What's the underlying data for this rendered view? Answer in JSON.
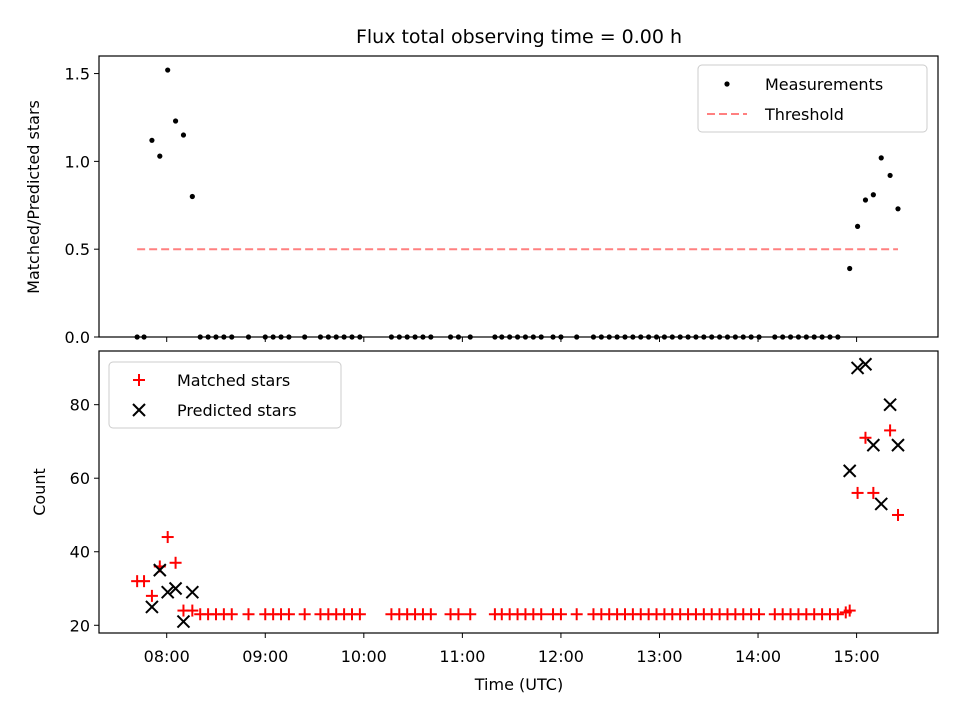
{
  "chart_data": [
    {
      "type": "scatter",
      "title": "Flux total observing time = 0.00 h",
      "xlabel": "",
      "ylabel": "Matched/Predicted stars",
      "xlim": [
        7.313,
        15.826
      ],
      "ylim": [
        0.0,
        1.6
      ],
      "yticks": [
        0.0,
        0.5,
        1.0,
        1.5
      ],
      "ytick_labels": [
        "0.0",
        "0.5",
        "1.0",
        "1.5"
      ],
      "legend_position": "top-right",
      "series": [
        {
          "name": "Measurements",
          "kind": "scatter",
          "color": "#000000",
          "points": [
            [
              7.7,
              0
            ],
            [
              7.77,
              0
            ],
            [
              7.85,
              1.12
            ],
            [
              7.93,
              1.03
            ],
            [
              8.01,
              1.52
            ],
            [
              8.09,
              1.23
            ],
            [
              8.17,
              1.15
            ],
            [
              8.26,
              0.8
            ],
            [
              8.34,
              0
            ],
            [
              8.42,
              0
            ],
            [
              8.5,
              0
            ],
            [
              8.58,
              0
            ],
            [
              8.66,
              0
            ],
            [
              8.83,
              0
            ],
            [
              9.0,
              0
            ],
            [
              9.08,
              0
            ],
            [
              9.16,
              0
            ],
            [
              9.24,
              0
            ],
            [
              9.4,
              0
            ],
            [
              9.56,
              0
            ],
            [
              9.64,
              0
            ],
            [
              9.72,
              0
            ],
            [
              9.8,
              0
            ],
            [
              9.88,
              0
            ],
            [
              9.96,
              0
            ],
            [
              10.28,
              0
            ],
            [
              10.36,
              0
            ],
            [
              10.44,
              0
            ],
            [
              10.52,
              0
            ],
            [
              10.6,
              0
            ],
            [
              10.68,
              0
            ],
            [
              10.88,
              0
            ],
            [
              10.96,
              0
            ],
            [
              11.08,
              0
            ],
            [
              11.33,
              0
            ],
            [
              11.4,
              0
            ],
            [
              11.48,
              0
            ],
            [
              11.56,
              0
            ],
            [
              11.64,
              0
            ],
            [
              11.72,
              0
            ],
            [
              11.8,
              0
            ],
            [
              11.92,
              0
            ],
            [
              12.0,
              0
            ],
            [
              12.16,
              0
            ],
            [
              12.33,
              0
            ],
            [
              12.41,
              0
            ],
            [
              12.49,
              0
            ],
            [
              12.57,
              0
            ],
            [
              12.65,
              0
            ],
            [
              12.73,
              0
            ],
            [
              12.81,
              0
            ],
            [
              12.89,
              0
            ],
            [
              12.97,
              0
            ],
            [
              13.05,
              0
            ],
            [
              13.13,
              0
            ],
            [
              13.21,
              0
            ],
            [
              13.29,
              0
            ],
            [
              13.37,
              0
            ],
            [
              13.45,
              0
            ],
            [
              13.53,
              0
            ],
            [
              13.61,
              0
            ],
            [
              13.69,
              0
            ],
            [
              13.77,
              0
            ],
            [
              13.85,
              0
            ],
            [
              13.93,
              0
            ],
            [
              14.01,
              0
            ],
            [
              14.17,
              0
            ],
            [
              14.25,
              0
            ],
            [
              14.33,
              0
            ],
            [
              14.41,
              0
            ],
            [
              14.49,
              0
            ],
            [
              14.57,
              0
            ],
            [
              14.65,
              0
            ],
            [
              14.73,
              0
            ],
            [
              14.81,
              0
            ],
            [
              14.93,
              0.39
            ],
            [
              15.01,
              0.63
            ],
            [
              15.09,
              0.78
            ],
            [
              15.17,
              0.81
            ],
            [
              15.25,
              1.02
            ],
            [
              15.34,
              0.92
            ],
            [
              15.42,
              0.73
            ]
          ]
        },
        {
          "name": "Threshold",
          "kind": "dashed-line",
          "color": "#ff8080",
          "points": [
            [
              7.7,
              0.5
            ],
            [
              15.42,
              0.5
            ]
          ]
        }
      ]
    },
    {
      "type": "scatter",
      "title": "",
      "xlabel": "Time (UTC)",
      "ylabel": "Count",
      "xlim": [
        7.313,
        15.826
      ],
      "ylim": [
        17.9,
        94.6
      ],
      "yticks": [
        20,
        40,
        60,
        80
      ],
      "ytick_labels": [
        "20",
        "40",
        "60",
        "80"
      ],
      "xticks": [
        8,
        9,
        10,
        11,
        12,
        13,
        14,
        15
      ],
      "xtick_labels": [
        "08:00",
        "09:00",
        "10:00",
        "11:00",
        "12:00",
        "13:00",
        "14:00",
        "15:00"
      ],
      "legend_position": "top-left",
      "series": [
        {
          "name": "Matched stars",
          "kind": "plus",
          "color": "#ff0000",
          "points": [
            [
              7.7,
              32
            ],
            [
              7.77,
              32
            ],
            [
              7.85,
              28
            ],
            [
              7.93,
              36
            ],
            [
              8.01,
              44
            ],
            [
              8.09,
              37
            ],
            [
              8.17,
              24
            ],
            [
              8.26,
              24
            ],
            [
              8.34,
              23
            ],
            [
              8.42,
              23
            ],
            [
              8.5,
              23
            ],
            [
              8.58,
              23
            ],
            [
              8.66,
              23
            ],
            [
              8.83,
              23
            ],
            [
              9.0,
              23
            ],
            [
              9.08,
              23
            ],
            [
              9.16,
              23
            ],
            [
              9.24,
              23
            ],
            [
              9.4,
              23
            ],
            [
              9.56,
              23
            ],
            [
              9.64,
              23
            ],
            [
              9.72,
              23
            ],
            [
              9.8,
              23
            ],
            [
              9.88,
              23
            ],
            [
              9.96,
              23
            ],
            [
              10.28,
              23
            ],
            [
              10.36,
              23
            ],
            [
              10.44,
              23
            ],
            [
              10.52,
              23
            ],
            [
              10.6,
              23
            ],
            [
              10.68,
              23
            ],
            [
              10.88,
              23
            ],
            [
              10.96,
              23
            ],
            [
              11.08,
              23
            ],
            [
              11.33,
              23
            ],
            [
              11.4,
              23
            ],
            [
              11.48,
              23
            ],
            [
              11.56,
              23
            ],
            [
              11.64,
              23
            ],
            [
              11.72,
              23
            ],
            [
              11.8,
              23
            ],
            [
              11.92,
              23
            ],
            [
              12.0,
              23
            ],
            [
              12.16,
              23
            ],
            [
              12.33,
              23
            ],
            [
              12.41,
              23
            ],
            [
              12.49,
              23
            ],
            [
              12.57,
              23
            ],
            [
              12.65,
              23
            ],
            [
              12.73,
              23
            ],
            [
              12.81,
              23
            ],
            [
              12.89,
              23
            ],
            [
              12.97,
              23
            ],
            [
              13.05,
              23
            ],
            [
              13.13,
              23
            ],
            [
              13.21,
              23
            ],
            [
              13.29,
              23
            ],
            [
              13.37,
              23
            ],
            [
              13.45,
              23
            ],
            [
              13.53,
              23
            ],
            [
              13.61,
              23
            ],
            [
              13.69,
              23
            ],
            [
              13.77,
              23
            ],
            [
              13.85,
              23
            ],
            [
              13.93,
              23
            ],
            [
              14.01,
              23
            ],
            [
              14.17,
              23
            ],
            [
              14.25,
              23
            ],
            [
              14.33,
              23
            ],
            [
              14.41,
              23
            ],
            [
              14.49,
              23
            ],
            [
              14.57,
              23
            ],
            [
              14.65,
              23
            ],
            [
              14.73,
              23
            ],
            [
              14.81,
              23
            ],
            [
              14.89,
              23.5
            ],
            [
              14.93,
              24
            ],
            [
              15.01,
              56
            ],
            [
              15.09,
              71
            ],
            [
              15.17,
              56
            ],
            [
              15.34,
              73
            ],
            [
              15.42,
              50
            ]
          ]
        },
        {
          "name": "Predicted stars",
          "kind": "cross",
          "color": "#000000",
          "points": [
            [
              7.85,
              25
            ],
            [
              7.93,
              35
            ],
            [
              8.01,
              29
            ],
            [
              8.09,
              30
            ],
            [
              8.17,
              21
            ],
            [
              8.26,
              29
            ],
            [
              14.93,
              62
            ],
            [
              15.01,
              90
            ],
            [
              15.09,
              91
            ],
            [
              15.17,
              69
            ],
            [
              15.25,
              53
            ],
            [
              15.34,
              80
            ],
            [
              15.42,
              69
            ]
          ]
        }
      ]
    }
  ]
}
